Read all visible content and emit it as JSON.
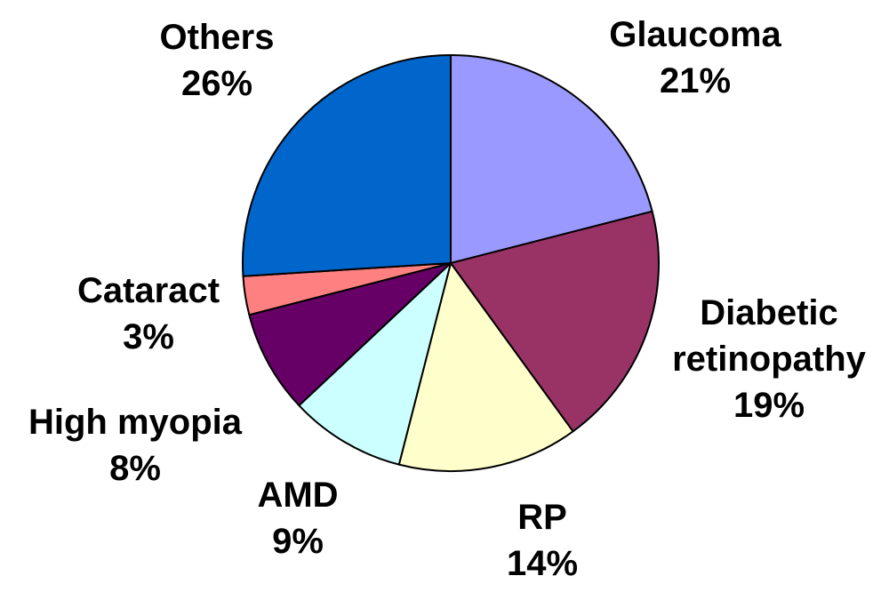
{
  "chart_data": {
    "type": "pie",
    "title": "",
    "start_angle_deg": 0,
    "direction": "clockwise",
    "slices": [
      {
        "label_lines": [
          "Glaucoma"
        ],
        "percent_label": "21%",
        "value": 21,
        "color": "#9999FF"
      },
      {
        "label_lines": [
          "Diabetic",
          "retinopathy"
        ],
        "percent_label": "19%",
        "value": 19,
        "color": "#993366"
      },
      {
        "label_lines": [
          "RP"
        ],
        "percent_label": "14%",
        "value": 14,
        "color": "#FFFFCC"
      },
      {
        "label_lines": [
          "AMD"
        ],
        "percent_label": "9%",
        "value": 9,
        "color": "#CCFFFF"
      },
      {
        "label_lines": [
          "High myopia"
        ],
        "percent_label": "8%",
        "value": 8,
        "color": "#660066"
      },
      {
        "label_lines": [
          "Cataract"
        ],
        "percent_label": "3%",
        "value": 3,
        "color": "#FF8080"
      },
      {
        "label_lines": [
          "Others"
        ],
        "percent_label": "26%",
        "value": 26,
        "color": "#0066CC"
      }
    ]
  }
}
